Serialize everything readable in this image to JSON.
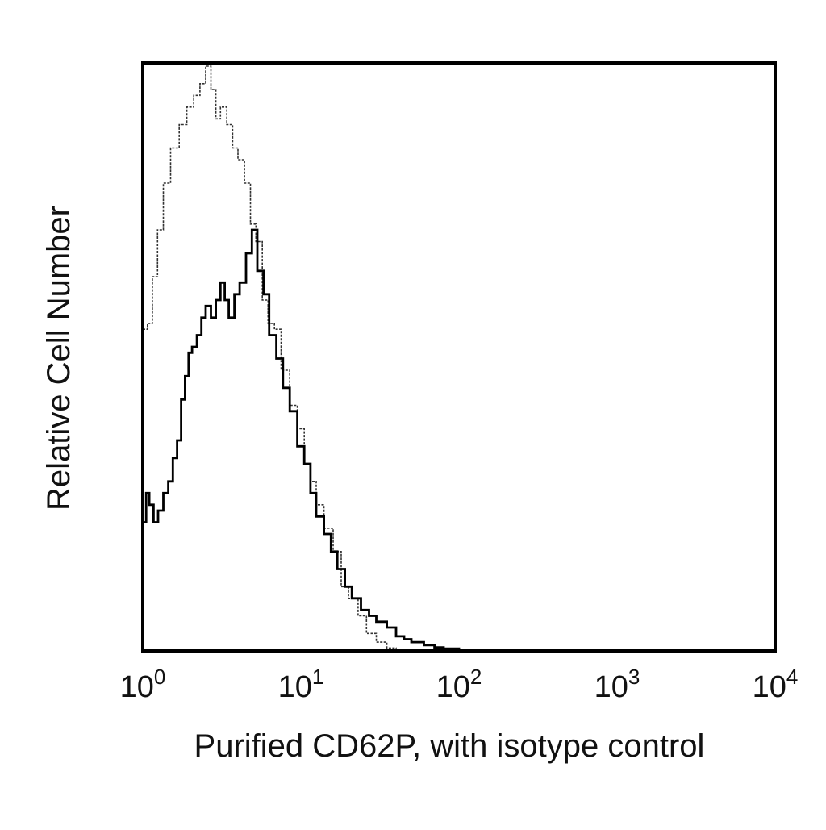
{
  "chart_data": {
    "type": "line",
    "chart_kind": "flow-cytometry-histogram",
    "xscale": "log",
    "xlim": [
      1,
      10000
    ],
    "ylim": [
      0,
      100
    ],
    "xlabel": "Purified CD62P, with isotype control",
    "ylabel": "Relative Cell Number",
    "title": "",
    "grid": false,
    "legend": "none",
    "x_ticks": [
      {
        "value": 1,
        "base": "10",
        "exp": "0"
      },
      {
        "value": 10,
        "base": "10",
        "exp": "1"
      },
      {
        "value": 100,
        "base": "10",
        "exp": "2"
      },
      {
        "value": 1000,
        "base": "10",
        "exp": "3"
      },
      {
        "value": 10000,
        "base": "10",
        "exp": "4"
      }
    ],
    "series": [
      {
        "style": "thin-dotted",
        "color": "#333333",
        "points": [
          [
            1.0,
            55
          ],
          [
            1.07,
            56
          ],
          [
            1.15,
            64
          ],
          [
            1.24,
            72
          ],
          [
            1.35,
            80
          ],
          [
            1.5,
            86
          ],
          [
            1.7,
            90
          ],
          [
            1.9,
            93
          ],
          [
            2.1,
            95
          ],
          [
            2.3,
            97
          ],
          [
            2.5,
            100
          ],
          [
            2.7,
            96
          ],
          [
            2.9,
            91
          ],
          [
            3.1,
            93
          ],
          [
            3.4,
            90
          ],
          [
            3.7,
            86
          ],
          [
            4.0,
            84
          ],
          [
            4.4,
            80
          ],
          [
            4.8,
            73
          ],
          [
            5.2,
            70
          ],
          [
            5.7,
            60
          ],
          [
            6.2,
            56
          ],
          [
            6.8,
            55
          ],
          [
            7.5,
            48
          ],
          [
            8.5,
            42
          ],
          [
            9.5,
            38
          ],
          [
            10.5,
            32
          ],
          [
            11.5,
            29
          ],
          [
            12.5,
            25
          ],
          [
            14.0,
            21
          ],
          [
            16.0,
            17
          ],
          [
            18.0,
            11
          ],
          [
            20.0,
            9
          ],
          [
            23.0,
            6
          ],
          [
            26.0,
            3
          ],
          [
            30.0,
            1.5
          ],
          [
            35.0,
            0.5
          ],
          [
            40.0,
            0
          ]
        ]
      },
      {
        "style": "bold",
        "color": "#000000",
        "points": [
          [
            1.0,
            22
          ],
          [
            1.05,
            27
          ],
          [
            1.1,
            25
          ],
          [
            1.17,
            22
          ],
          [
            1.25,
            24
          ],
          [
            1.35,
            27
          ],
          [
            1.45,
            29
          ],
          [
            1.55,
            33
          ],
          [
            1.65,
            36
          ],
          [
            1.75,
            43
          ],
          [
            1.85,
            47
          ],
          [
            1.95,
            51
          ],
          [
            2.05,
            52
          ],
          [
            2.2,
            54
          ],
          [
            2.35,
            57
          ],
          [
            2.5,
            59
          ],
          [
            2.7,
            57
          ],
          [
            2.9,
            60
          ],
          [
            3.1,
            63
          ],
          [
            3.3,
            60
          ],
          [
            3.5,
            57
          ],
          [
            3.8,
            61
          ],
          [
            4.1,
            63
          ],
          [
            4.5,
            68
          ],
          [
            4.9,
            72
          ],
          [
            5.3,
            65
          ],
          [
            5.8,
            61
          ],
          [
            6.3,
            54
          ],
          [
            7.0,
            50
          ],
          [
            7.7,
            45
          ],
          [
            8.5,
            41
          ],
          [
            9.5,
            35
          ],
          [
            10.5,
            32
          ],
          [
            11.5,
            27
          ],
          [
            12.5,
            23
          ],
          [
            14.0,
            20
          ],
          [
            15.5,
            17
          ],
          [
            17.0,
            14
          ],
          [
            19.0,
            11
          ],
          [
            21.0,
            9
          ],
          [
            24.0,
            7
          ],
          [
            27.0,
            6
          ],
          [
            30.0,
            5
          ],
          [
            35.0,
            4
          ],
          [
            40.0,
            2.5
          ],
          [
            45.0,
            2
          ],
          [
            50.0,
            1.5
          ],
          [
            60.0,
            1
          ],
          [
            70.0,
            0.6
          ],
          [
            80.0,
            0.4
          ],
          [
            100.0,
            0.2
          ],
          [
            150.0,
            0.1
          ],
          [
            300.0,
            0
          ],
          [
            10000,
            0
          ]
        ]
      }
    ]
  }
}
